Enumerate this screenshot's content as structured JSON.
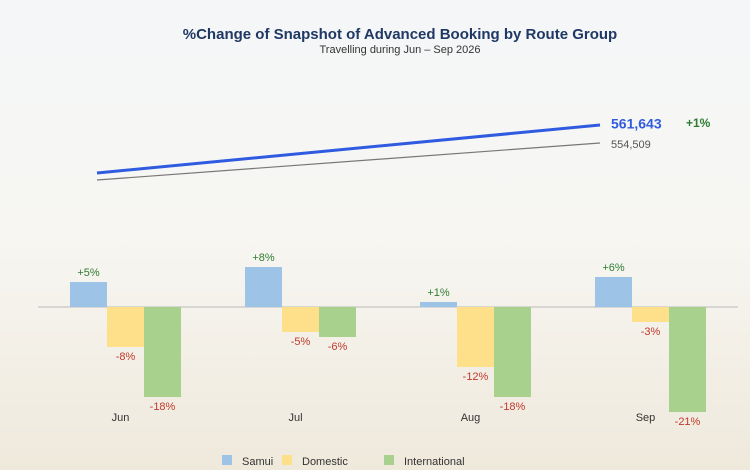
{
  "chart_data": {
    "type": "bar",
    "title": "%Change of Snapshot of Advanced Booking by Route Group",
    "subtitle": "Travelling during Jun – Sep 2026",
    "trend": {
      "current": "561,643",
      "change": "+1%",
      "previous": "554,509"
    },
    "categories": [
      "Jun",
      "Jul",
      "Aug",
      "Sep"
    ],
    "series": [
      {
        "name": "Samui",
        "color": "#9dc3e6",
        "values": [
          5,
          8,
          1,
          6
        ],
        "value_labels": [
          "+5%",
          "+8%",
          "+1%",
          "+6%"
        ]
      },
      {
        "name": "Domestic",
        "color": "#ffe08a",
        "values": [
          -8,
          -5,
          -12,
          -3
        ],
        "value_labels": [
          "-8%",
          "-5%",
          "-12%",
          "-3%"
        ]
      },
      {
        "name": "International",
        "color": "#a9d18e",
        "values": [
          -18,
          -6,
          -18,
          -21
        ],
        "value_labels": [
          "-18%",
          "-6%",
          "-18%",
          "-21%"
        ]
      }
    ],
    "ylim": [
      -22,
      10
    ],
    "legend": "bottom"
  }
}
